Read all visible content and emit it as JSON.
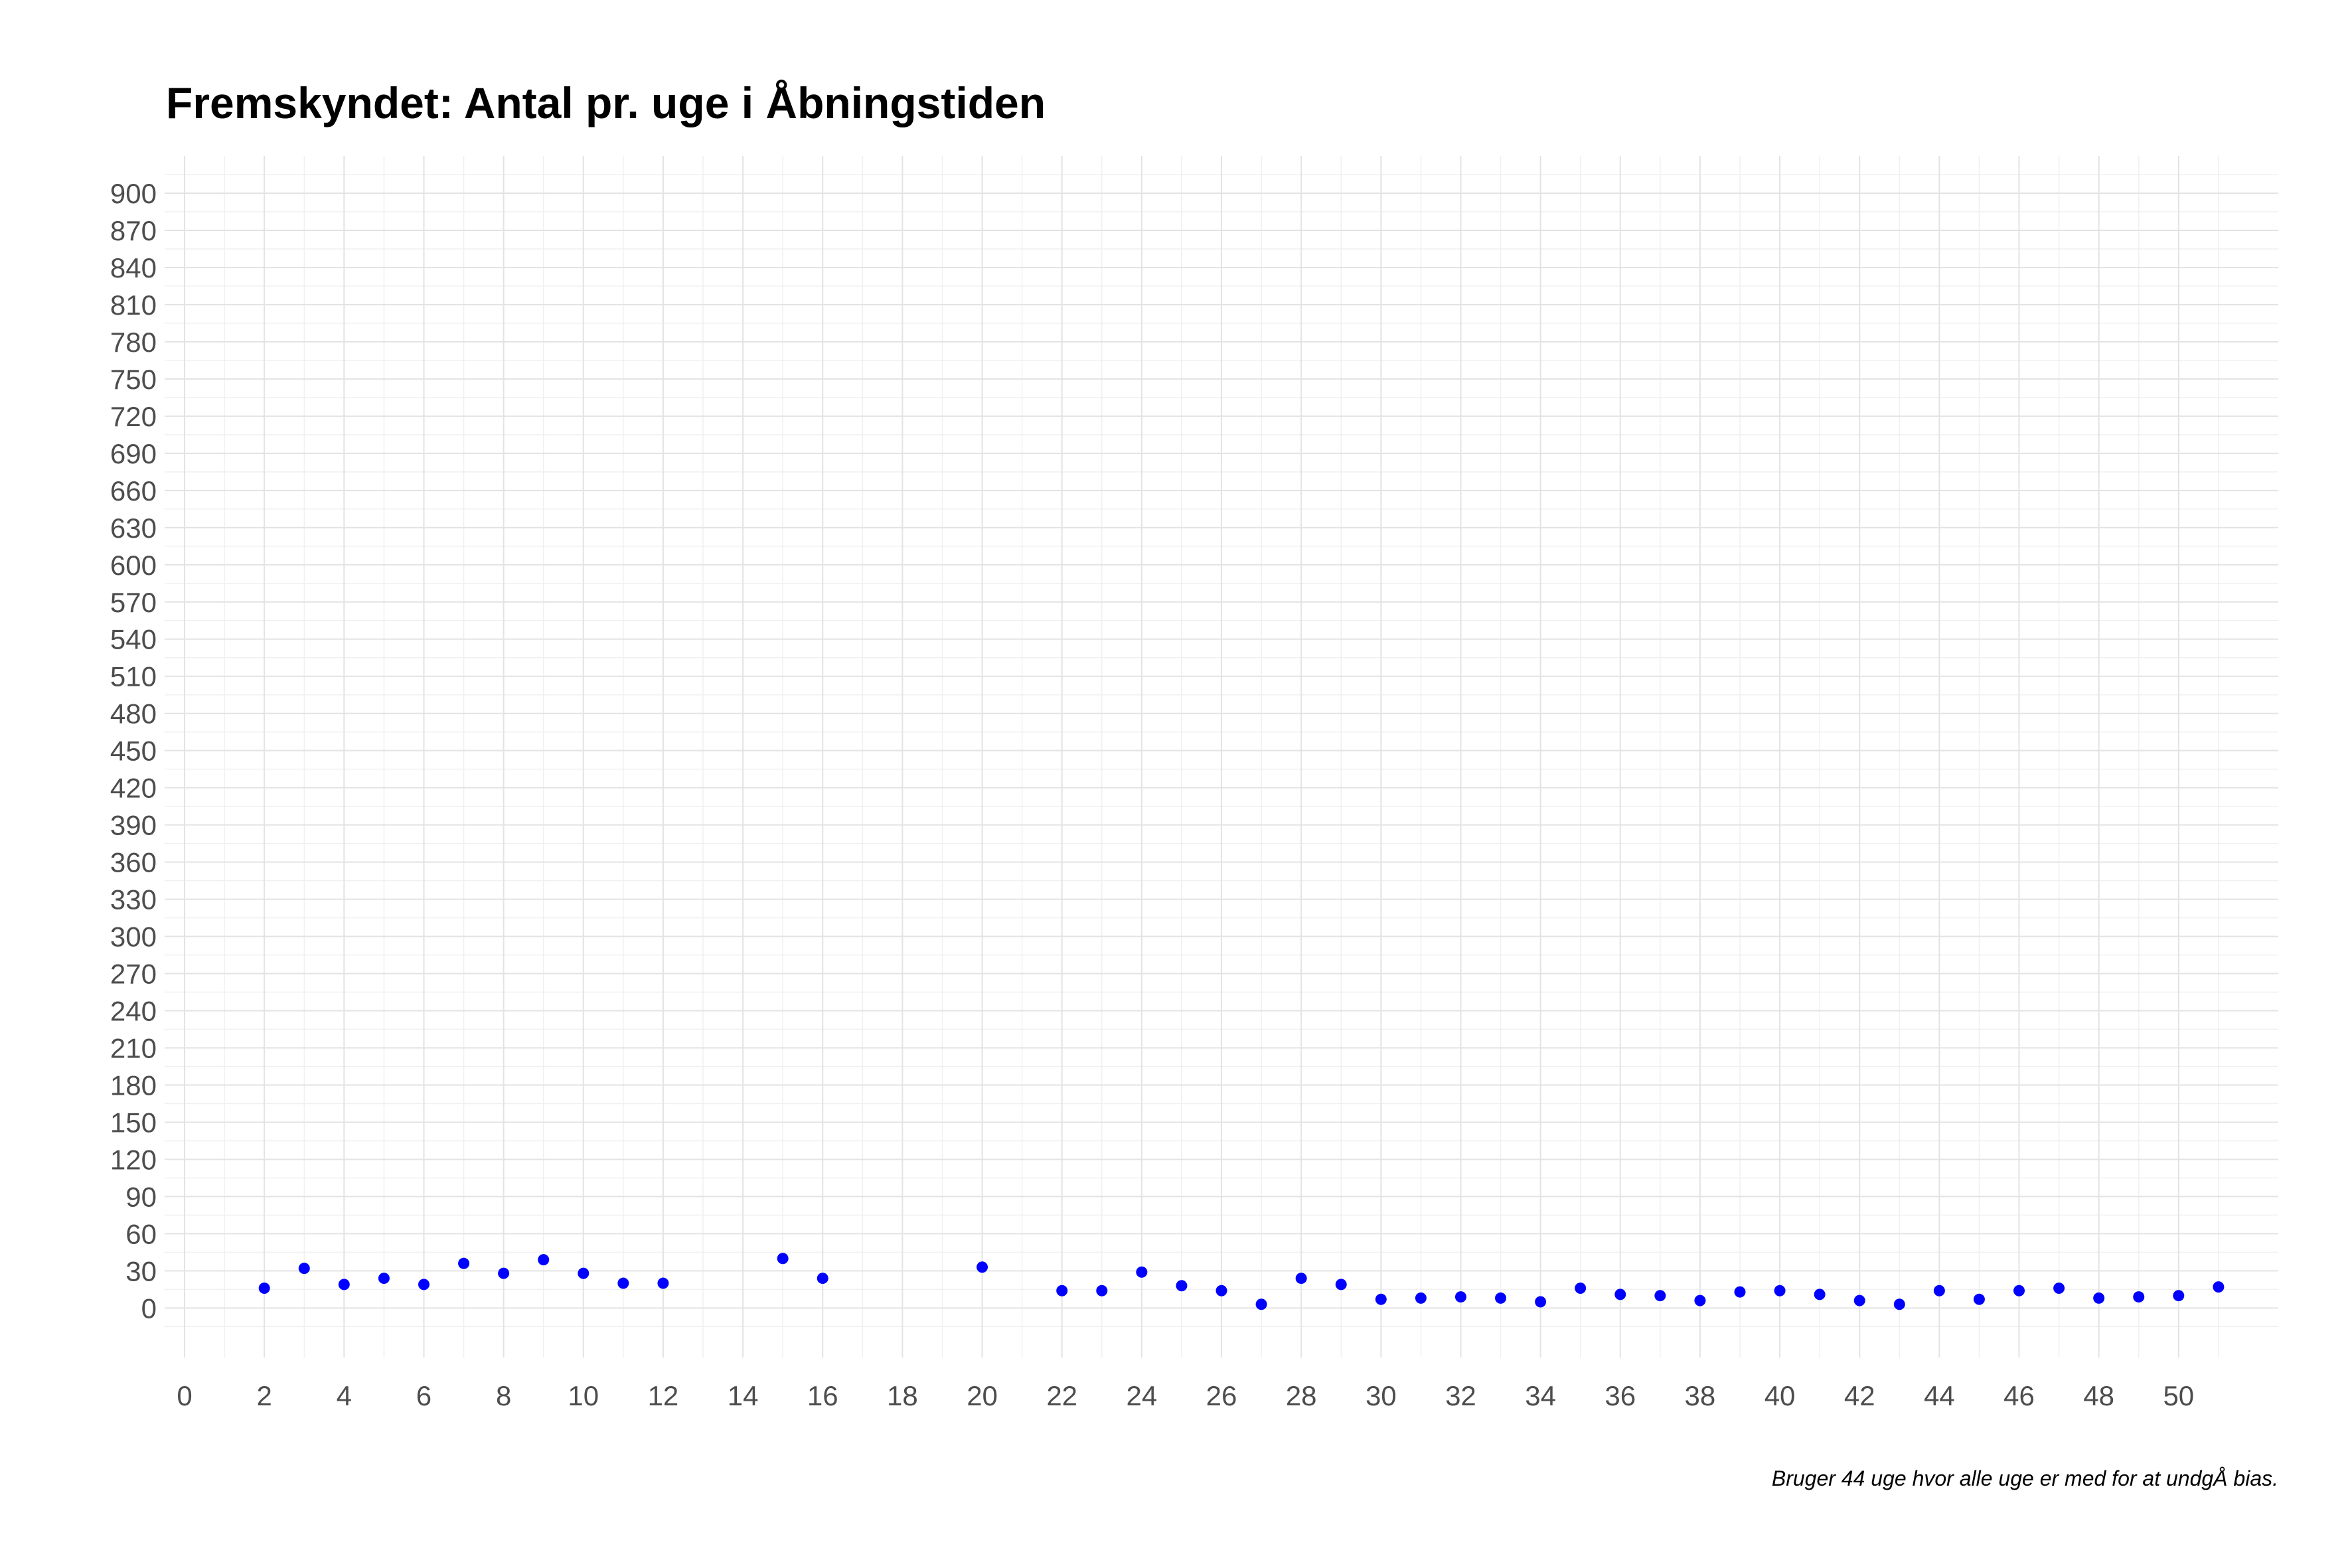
{
  "chart_data": {
    "type": "scatter",
    "title": "Fremskyndet: Antal pr. uge i Åbningstiden",
    "xlabel": "",
    "ylabel": "",
    "caption": "Bruger 44 uge hvor alle uge er med for at undgÅ bias.",
    "xlim": [
      -0.5,
      52.5
    ],
    "ylim": [
      -40,
      930
    ],
    "x_ticks": [
      0,
      2,
      4,
      6,
      8,
      10,
      12,
      14,
      16,
      18,
      20,
      22,
      24,
      26,
      28,
      30,
      32,
      34,
      36,
      38,
      40,
      42,
      44,
      46,
      48,
      50
    ],
    "y_ticks": [
      0,
      30,
      60,
      90,
      120,
      150,
      180,
      210,
      240,
      270,
      300,
      330,
      360,
      390,
      420,
      450,
      480,
      510,
      540,
      570,
      600,
      630,
      660,
      690,
      720,
      750,
      780,
      810,
      840,
      870,
      900
    ],
    "grid": true,
    "point_color": "#0000ff",
    "series": [
      {
        "points": [
          [
            2,
            16
          ],
          [
            3,
            32
          ],
          [
            4,
            19
          ],
          [
            5,
            24
          ],
          [
            6,
            19
          ],
          [
            7,
            36
          ],
          [
            8,
            28
          ],
          [
            9,
            39
          ],
          [
            10,
            28
          ],
          [
            11,
            20
          ],
          [
            12,
            20
          ],
          [
            15,
            40
          ],
          [
            16,
            24
          ],
          [
            20,
            33
          ],
          [
            22,
            14
          ],
          [
            23,
            14
          ],
          [
            24,
            29
          ],
          [
            25,
            18
          ],
          [
            26,
            14
          ],
          [
            27,
            3
          ],
          [
            28,
            24
          ],
          [
            29,
            19
          ],
          [
            30,
            7
          ],
          [
            31,
            8
          ],
          [
            32,
            9
          ],
          [
            33,
            8
          ],
          [
            34,
            5
          ],
          [
            35,
            16
          ],
          [
            36,
            11
          ],
          [
            37,
            10
          ],
          [
            38,
            6
          ],
          [
            39,
            13
          ],
          [
            40,
            14
          ],
          [
            41,
            11
          ],
          [
            42,
            6
          ],
          [
            43,
            3
          ],
          [
            44,
            14
          ],
          [
            45,
            7
          ],
          [
            46,
            14
          ],
          [
            47,
            16
          ],
          [
            48,
            8
          ],
          [
            49,
            9
          ],
          [
            50,
            10
          ],
          [
            51,
            17
          ]
        ]
      }
    ]
  }
}
